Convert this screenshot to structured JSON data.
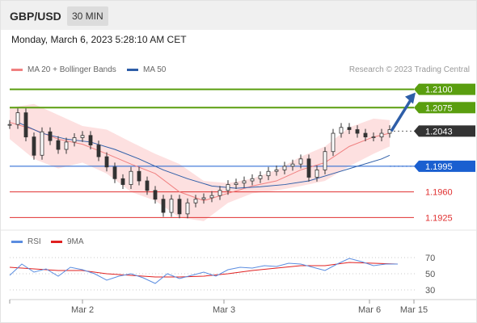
{
  "header": {
    "pair": "GBP/USD",
    "timeframe": "30 MIN"
  },
  "date_line": "Monday, March 6, 2023 5:28:10 AM CET",
  "legend": {
    "ma20": {
      "label": "MA 20 + Bollinger Bands",
      "color": "#f08080"
    },
    "ma50": {
      "label": "MA 50",
      "color": "#2e5ea8"
    }
  },
  "credit": "Research © 2023 Trading Central",
  "rsi_legend": {
    "rsi": {
      "label": "RSI",
      "color": "#5b8de0"
    },
    "ma9": {
      "label": "9MA",
      "color": "#e02020"
    }
  },
  "chart_data": [
    {
      "type": "line",
      "title": "",
      "x_ticks": [
        "Mar 2",
        "Mar 3",
        "Mar 6",
        "Mar 15"
      ],
      "x_range": [
        0,
        100
      ],
      "x_tick_positions": [
        18,
        53,
        89,
        100
      ],
      "ylim": [
        1.191,
        1.2115
      ],
      "levels": [
        {
          "label": "1.2100",
          "value": 1.21,
          "style": "green-line",
          "color": "#5a9e0f"
        },
        {
          "label": "1.2075",
          "value": 1.2075,
          "style": "green-line",
          "color": "#5a9e0f"
        },
        {
          "label": "1.2043",
          "value": 1.2043,
          "style": "current-price",
          "color": "#333333"
        },
        {
          "label": "1.1995",
          "value": 1.1995,
          "style": "blue-line",
          "color": "#1a5fd0"
        },
        {
          "label": "1.1960",
          "value": 1.196,
          "style": "red-line",
          "color": "#e03030"
        },
        {
          "label": "1.1925",
          "value": 1.1925,
          "style": "red-line",
          "color": "#e03030"
        }
      ],
      "price": {
        "x": [
          0,
          2,
          4,
          6,
          8,
          10,
          12,
          14,
          16,
          18,
          20,
          22,
          24,
          26,
          28,
          30,
          32,
          34,
          36,
          38,
          40,
          42,
          44,
          46,
          48,
          50,
          52,
          54,
          56,
          58,
          60,
          62,
          64,
          66,
          68,
          70,
          72,
          74,
          76,
          78,
          80,
          82,
          84,
          86,
          88,
          90,
          92,
          94
        ],
        "y": [
          1.2052,
          1.2068,
          1.2035,
          1.201,
          1.2042,
          1.203,
          1.2018,
          1.2028,
          1.2034,
          1.2037,
          1.2024,
          1.2008,
          1.1994,
          1.1978,
          1.197,
          1.1988,
          1.1975,
          1.1962,
          1.195,
          1.1932,
          1.195,
          1.193,
          1.1945,
          1.195,
          1.1952,
          1.1955,
          1.1962,
          1.197,
          1.1972,
          1.1975,
          1.1978,
          1.1982,
          1.1988,
          1.199,
          1.1995,
          1.1998,
          1.2005,
          1.198,
          1.199,
          1.2015,
          1.204,
          1.2048,
          1.2045,
          1.204,
          1.2035,
          1.2035,
          1.204,
          1.2045
        ]
      },
      "ma20": {
        "x": [
          0,
          6,
          12,
          18,
          24,
          30,
          36,
          42,
          48,
          54,
          60,
          66,
          72,
          78,
          84,
          90,
          94
        ],
        "y": [
          1.2055,
          1.2045,
          1.2032,
          1.2025,
          1.2012,
          1.1998,
          1.1985,
          1.196,
          1.1948,
          1.1958,
          1.1968,
          1.1975,
          1.199,
          1.2,
          1.2022,
          1.2035,
          1.204
        ]
      },
      "ma50": {
        "x": [
          2,
          8,
          14,
          20,
          26,
          32,
          38,
          44,
          50,
          56,
          62,
          68,
          74,
          80,
          86,
          92,
          94
        ],
        "y": [
          1.2055,
          1.204,
          1.2032,
          1.2028,
          1.2018,
          1.2005,
          1.199,
          1.1978,
          1.1968,
          1.1965,
          1.1967,
          1.197,
          1.1975,
          1.1985,
          1.1995,
          1.2005,
          1.201
        ]
      },
      "bb_upper": {
        "x": [
          0,
          6,
          12,
          18,
          24,
          30,
          36,
          42,
          48,
          54,
          60,
          66,
          72,
          78,
          84,
          90,
          94
        ],
        "y": [
          1.2075,
          1.208,
          1.2065,
          1.205,
          1.2045,
          1.2028,
          1.2012,
          1.1998,
          1.1975,
          1.1972,
          1.1978,
          1.199,
          1.2008,
          1.2022,
          1.2048,
          1.206,
          1.2058
        ]
      },
      "bb_lower": {
        "x": [
          0,
          6,
          12,
          18,
          24,
          30,
          36,
          42,
          48,
          54,
          60,
          66,
          72,
          78,
          84,
          90,
          94
        ],
        "y": [
          1.2032,
          1.2005,
          1.1992,
          1.2,
          1.1985,
          1.196,
          1.1948,
          1.1925,
          1.192,
          1.1945,
          1.1958,
          1.1962,
          1.1968,
          1.1975,
          1.1995,
          1.2012,
          1.2022
        ]
      },
      "forecast_arrow": {
        "from": [
          94,
          1.2043
        ],
        "to": [
          100,
          1.21
        ],
        "color": "#2e5ea8"
      }
    },
    {
      "type": "line",
      "title": "",
      "ylim": [
        20,
        80
      ],
      "y_ticks": [
        70,
        50,
        30
      ],
      "x_range": [
        0,
        100
      ],
      "rsi": {
        "x": [
          0,
          3,
          6,
          9,
          12,
          15,
          18,
          21,
          24,
          27,
          30,
          33,
          36,
          39,
          42,
          45,
          48,
          51,
          54,
          57,
          60,
          63,
          66,
          69,
          72,
          75,
          78,
          81,
          84,
          87,
          90,
          93,
          96
        ],
        "y": [
          48,
          62,
          52,
          56,
          47,
          58,
          55,
          50,
          42,
          47,
          50,
          45,
          38,
          50,
          44,
          48,
          52,
          47,
          55,
          58,
          57,
          60,
          59,
          63,
          62,
          58,
          54,
          62,
          69,
          65,
          60,
          62,
          62
        ]
      },
      "ma9": {
        "x": [
          0,
          6,
          12,
          18,
          24,
          30,
          36,
          42,
          48,
          54,
          60,
          66,
          72,
          78,
          84,
          90,
          96
        ],
        "y": [
          58,
          56,
          54,
          54,
          50,
          48,
          46,
          46,
          47,
          50,
          54,
          57,
          60,
          60,
          64,
          63,
          62
        ]
      }
    }
  ]
}
